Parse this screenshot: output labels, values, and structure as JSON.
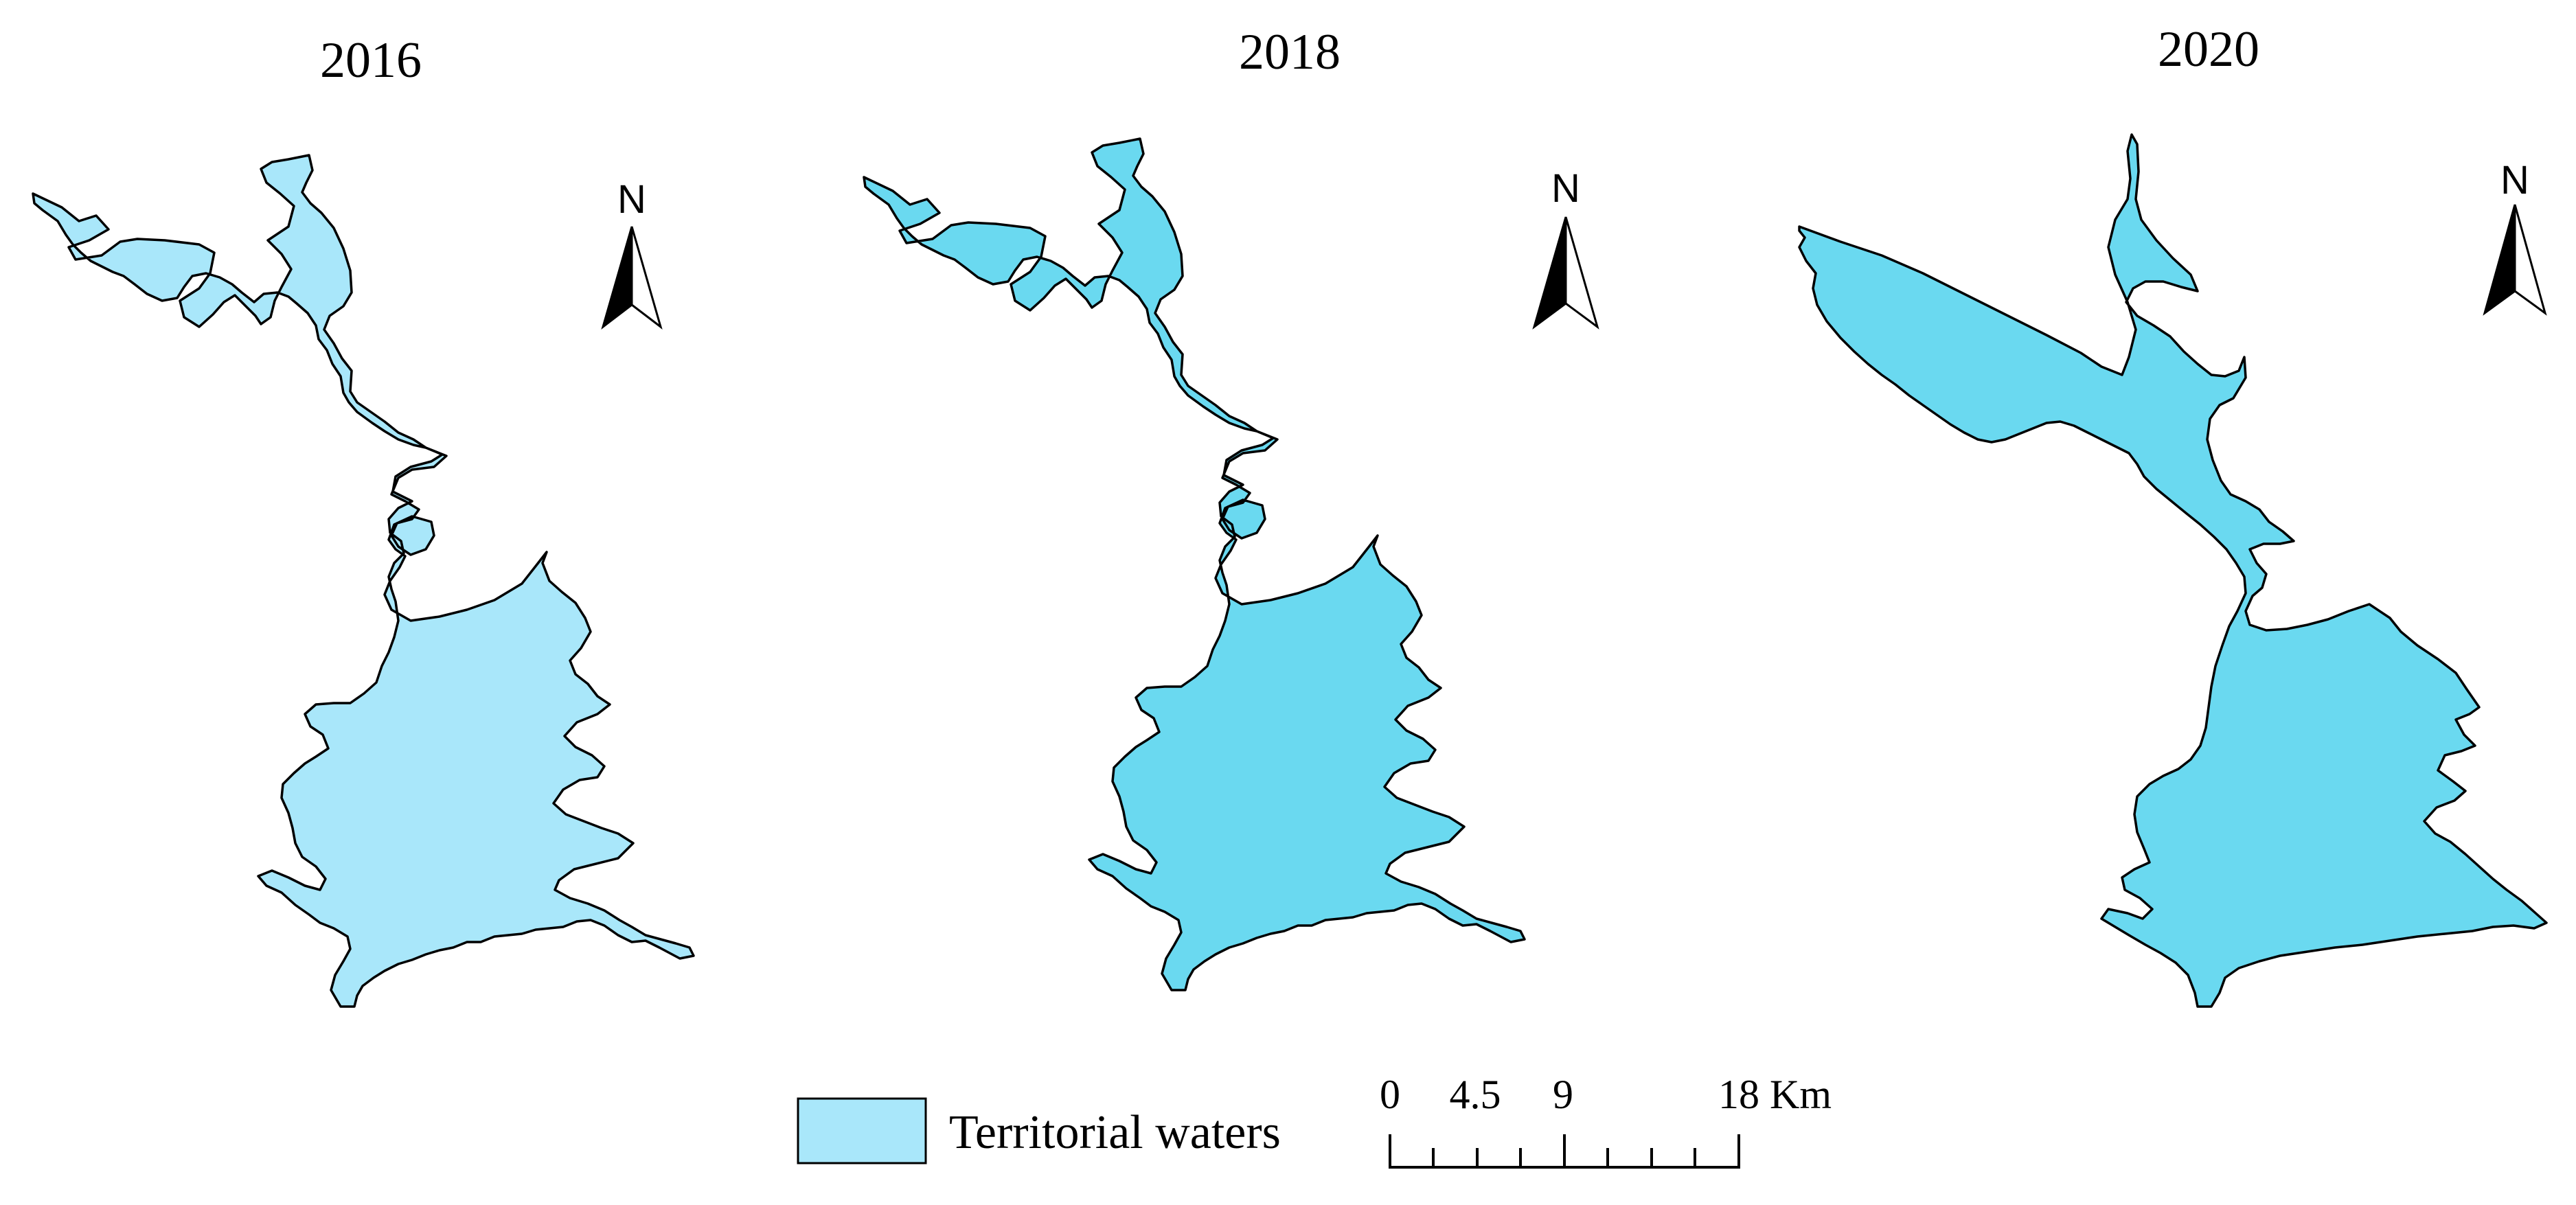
{
  "maps": [
    {
      "title": "2016",
      "color": "#a9e7fa"
    },
    {
      "title": "2018",
      "color": "#6ad9f0"
    },
    {
      "title": "2020",
      "color": "#6ad9f0"
    }
  ],
  "north_arrow": {
    "label": "N",
    "icon": "north-arrow-icon"
  },
  "legend": {
    "label": "Territorial waters",
    "color": "#a9e7fa"
  },
  "scale_bar": {
    "labels": [
      "0",
      "4.5",
      "9",
      "18 Km"
    ],
    "values": [
      0,
      4.5,
      9,
      18
    ],
    "unit": "Km"
  }
}
